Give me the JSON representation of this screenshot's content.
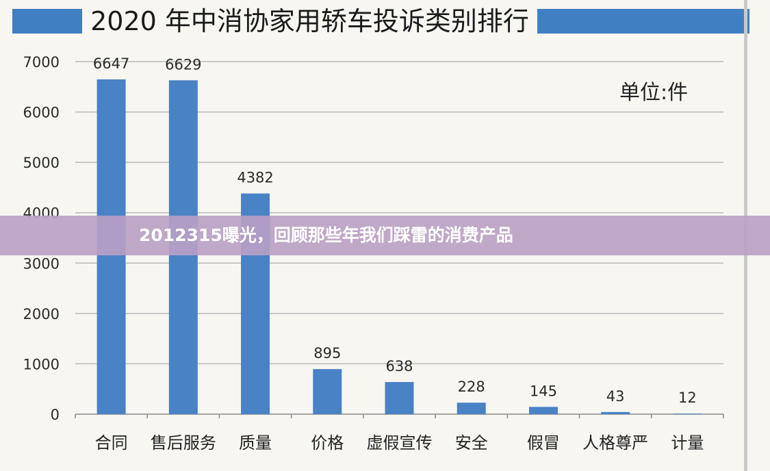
{
  "chart_data": {
    "type": "bar",
    "title": "2020 年中消协家用轿车投诉类别排行",
    "unit_label": "单位:件",
    "categories": [
      "合同",
      "售后服务",
      "质量",
      "价格",
      "虚假宣传",
      "安全",
      "假冒",
      "人格尊严",
      "计量"
    ],
    "values": [
      6647,
      6629,
      4382,
      895,
      638,
      228,
      145,
      43,
      12
    ],
    "yticks": [
      0,
      1000,
      2000,
      3000,
      4000,
      5000,
      6000,
      7000
    ],
    "ylim": [
      0,
      7000
    ],
    "grid": true,
    "bar_color": "#4a82c6"
  },
  "banner": {
    "text": "2012315曝光，回顾那些年我们踩雷的消费产品"
  }
}
